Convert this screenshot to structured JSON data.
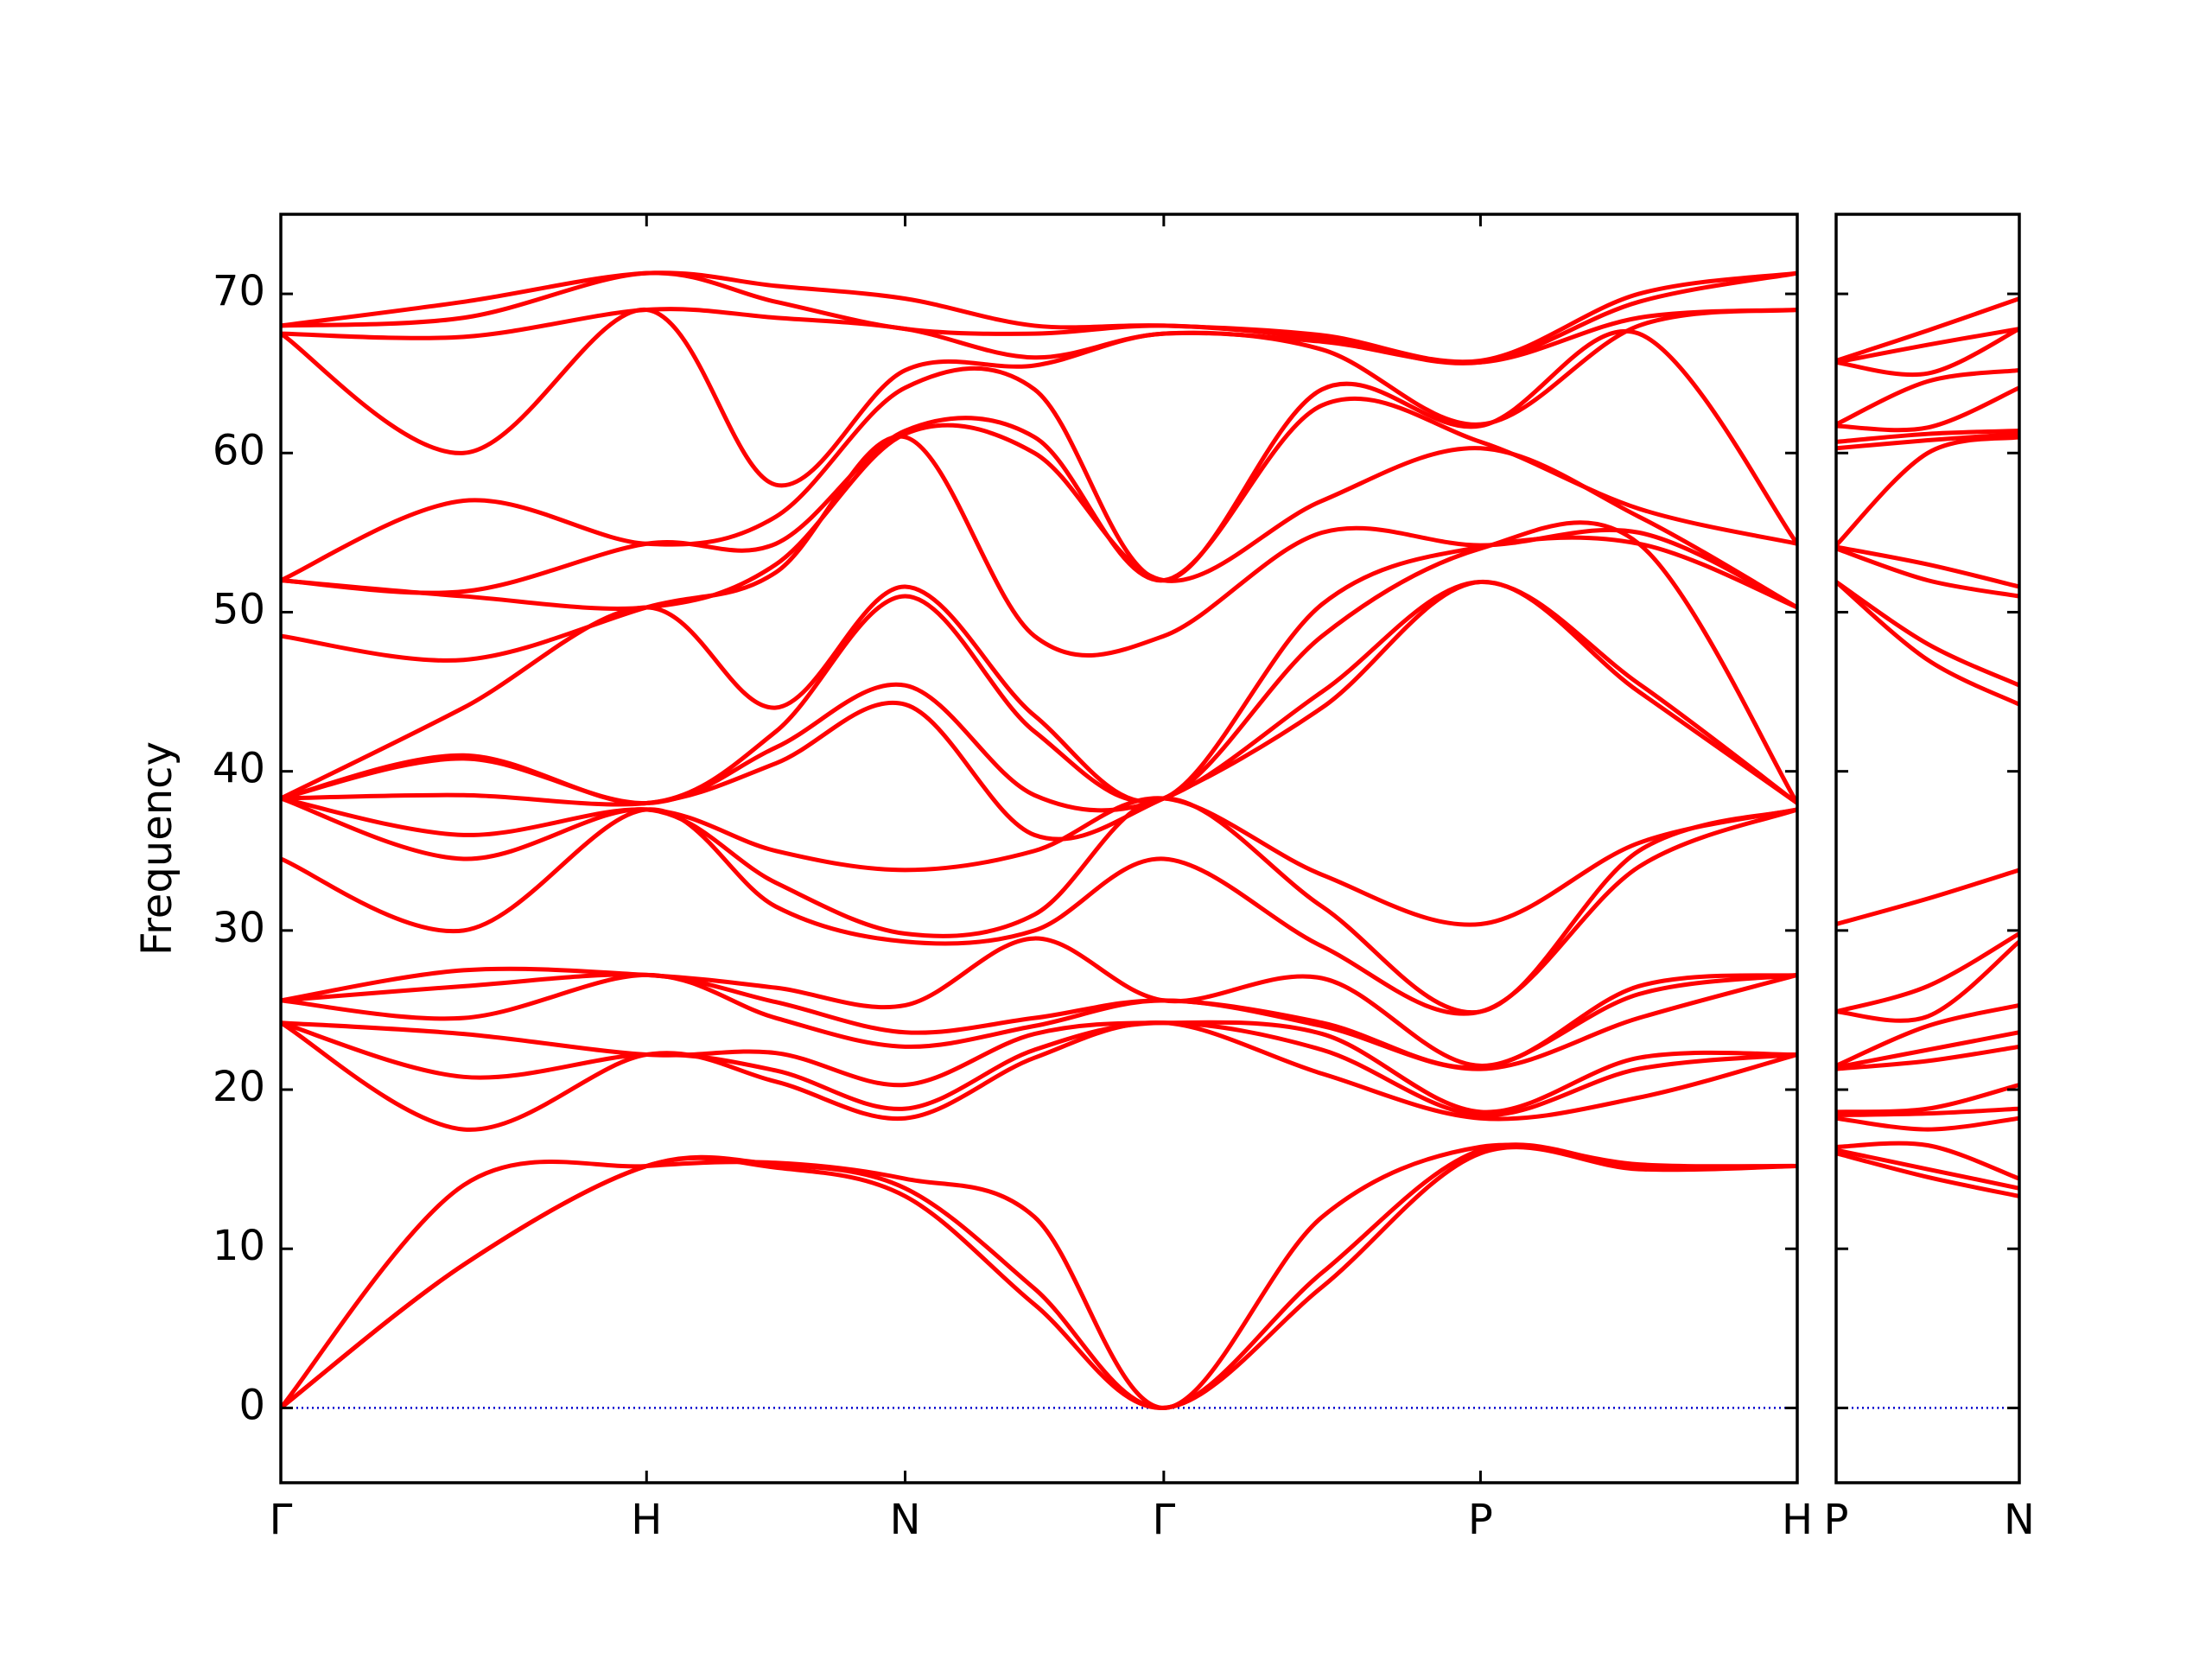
{
  "chart_data": [
    {
      "type": "line",
      "ylabel": "Frequency",
      "x": [
        0,
        0.5,
        1,
        1.3536,
        1.7071,
        2.0607,
        2.4142,
        2.8472,
        3.2802,
        3.7133,
        4.1463
      ],
      "xlim": [
        0,
        4.1463
      ],
      "xticks": [
        {
          "value": 0,
          "label": "Γ"
        },
        {
          "value": 1,
          "label": "H"
        },
        {
          "value": 1.7071,
          "label": "N"
        },
        {
          "value": 2.4142,
          "label": "Γ"
        },
        {
          "value": 3.2802,
          "label": "P"
        },
        {
          "value": 4.1463,
          "label": "H"
        }
      ],
      "ylim": [
        -4.7,
        75
      ],
      "yticks": [
        0,
        10,
        20,
        30,
        40,
        50,
        60,
        70
      ],
      "hline": 0,
      "hline_color": "#0000cc",
      "series": [
        {
          "color": "#ff0000",
          "values": [
            0,
            9,
            15.2,
            15.1,
            13.3,
            6.5,
            0,
            7.6,
            16.0,
            15,
            15.2
          ]
        },
        {
          "color": "#ff0000",
          "values": [
            0,
            9,
            15.2,
            15.3,
            13.8,
            7.5,
            0,
            8.5,
            16.2,
            15.2,
            15.2
          ]
        },
        {
          "color": "#ff0000",
          "values": [
            0,
            14,
            15.2,
            15.4,
            14.4,
            12,
            0,
            12,
            16.4,
            15.3,
            15.2
          ]
        },
        {
          "color": "#ff0000",
          "values": [
            24.2,
            17.5,
            22.2,
            20.5,
            18.2,
            22,
            24.2,
            21,
            18.2,
            19.5,
            22.2
          ]
        },
        {
          "color": "#ff0000",
          "values": [
            24.2,
            20.8,
            22.2,
            21.2,
            18.8,
            22.5,
            24.2,
            22.5,
            18.4,
            21.3,
            22.2
          ]
        },
        {
          "color": "#ff0000",
          "values": [
            24.2,
            23.5,
            22.2,
            22.3,
            20.3,
            23.5,
            24.2,
            23.5,
            18.6,
            22,
            22.2
          ]
        },
        {
          "color": "#ff0000",
          "values": [
            25.6,
            24.5,
            27.2,
            24.5,
            22.7,
            24,
            25.6,
            24,
            21.3,
            24.5,
            27.2
          ]
        },
        {
          "color": "#ff0000",
          "values": [
            25.6,
            26.5,
            27.2,
            25.5,
            23.6,
            24.5,
            25.6,
            24.2,
            21.4,
            26,
            27.2
          ]
        },
        {
          "color": "#ff0000",
          "values": [
            25.6,
            27.5,
            27.2,
            26.4,
            25.3,
            29.5,
            25.6,
            27,
            21.5,
            26.5,
            27.2
          ]
        },
        {
          "color": "#ff0000",
          "values": [
            34.5,
            30,
            37.6,
            31.5,
            29.3,
            30,
            34.5,
            29,
            24.9,
            34,
            37.6
          ]
        },
        {
          "color": "#ff0000",
          "values": [
            38.3,
            34.5,
            37.6,
            33,
            29.8,
            31,
            38.3,
            31.5,
            24.9,
            35,
            37.6
          ]
        },
        {
          "color": "#ff0000",
          "values": [
            38.3,
            36,
            37.6,
            35,
            33.8,
            35,
            38.3,
            33.5,
            30.4,
            35.5,
            37.6
          ]
        },
        {
          "color": "#ff0000",
          "values": [
            38.3,
            38.5,
            38,
            40.5,
            44.2,
            36,
            38.3,
            44,
            51.9,
            45,
            38
          ]
        },
        {
          "color": "#ff0000",
          "values": [
            38.3,
            40.8,
            38,
            41.5,
            45.4,
            38.5,
            38.3,
            45,
            51.9,
            45.5,
            38
          ]
        },
        {
          "color": "#ff0000",
          "values": [
            38.3,
            41,
            38,
            42.5,
            51,
            42.5,
            38.3,
            48.5,
            54.0,
            54.3,
            38
          ]
        },
        {
          "color": "#ff0000",
          "values": [
            38.3,
            44,
            50.3,
            44,
            51.6,
            43.5,
            38.3,
            50.5,
            54.1,
            54.3,
            50.3
          ]
        },
        {
          "color": "#ff0000",
          "values": [
            48.5,
            47,
            50.3,
            52.5,
            61,
            48.5,
            48.5,
            55,
            54.2,
            55,
            50.3
          ]
        },
        {
          "color": "#ff0000",
          "values": [
            52,
            51,
            50.3,
            53,
            61.2,
            60,
            52,
            57,
            60.3,
            56,
            50.3
          ]
        },
        {
          "color": "#ff0000",
          "values": [
            52,
            51.3,
            54.3,
            54.3,
            61.4,
            61,
            52,
            63,
            60.7,
            56.5,
            54.3
          ]
        },
        {
          "color": "#ff0000",
          "values": [
            52,
            57,
            54.3,
            56,
            64.1,
            64,
            52,
            64,
            61.7,
            67.5,
            54.3
          ]
        },
        {
          "color": "#ff0000",
          "values": [
            67.5,
            60,
            69,
            58,
            65.2,
            65.5,
            67.5,
            66.5,
            61.8,
            68,
            69
          ]
        },
        {
          "color": "#ff0000",
          "values": [
            67.5,
            67.3,
            69,
            68.5,
            67.8,
            66,
            67.5,
            67,
            65.7,
            68.5,
            69
          ]
        },
        {
          "color": "#ff0000",
          "values": [
            68,
            68.5,
            71.3,
            69.5,
            67.8,
            67.5,
            68,
            67.2,
            65.7,
            69.5,
            71.3
          ]
        },
        {
          "color": "#ff0000",
          "values": [
            68,
            69.5,
            71.3,
            70.5,
            69.7,
            68,
            68,
            67.4,
            65.8,
            70,
            71.3
          ]
        }
      ]
    },
    {
      "type": "line",
      "x": [
        0,
        0.25,
        0.5
      ],
      "xlim": [
        0,
        0.5
      ],
      "xticks": [
        {
          "value": 0,
          "label": "P"
        },
        {
          "value": 0.5,
          "label": "N"
        }
      ],
      "ylim": [
        -4.7,
        75
      ],
      "yticks": [
        0,
        10,
        20,
        30,
        40,
        50,
        60,
        70
      ],
      "hline": 0,
      "hline_color": "#0000cc",
      "series": [
        {
          "color": "#ff0000",
          "values": [
            16.0,
            14.5,
            13.3
          ]
        },
        {
          "color": "#ff0000",
          "values": [
            16.2,
            15,
            13.8
          ]
        },
        {
          "color": "#ff0000",
          "values": [
            16.4,
            16.5,
            14.4
          ]
        },
        {
          "color": "#ff0000",
          "values": [
            18.2,
            17.5,
            18.2
          ]
        },
        {
          "color": "#ff0000",
          "values": [
            18.4,
            18.5,
            18.8
          ]
        },
        {
          "color": "#ff0000",
          "values": [
            18.6,
            18.8,
            20.3
          ]
        },
        {
          "color": "#ff0000",
          "values": [
            21.3,
            21.8,
            22.7
          ]
        },
        {
          "color": "#ff0000",
          "values": [
            21.4,
            22.5,
            23.6
          ]
        },
        {
          "color": "#ff0000",
          "values": [
            21.5,
            24,
            25.3
          ]
        },
        {
          "color": "#ff0000",
          "values": [
            24.9,
            24.6,
            29.3
          ]
        },
        {
          "color": "#ff0000",
          "values": [
            24.9,
            26.5,
            29.8
          ]
        },
        {
          "color": "#ff0000",
          "values": [
            30.4,
            32,
            33.8
          ]
        },
        {
          "color": "#ff0000",
          "values": [
            51.9,
            47,
            44.2
          ]
        },
        {
          "color": "#ff0000",
          "values": [
            51.9,
            48,
            45.4
          ]
        },
        {
          "color": "#ff0000",
          "values": [
            54.0,
            52,
            51
          ]
        },
        {
          "color": "#ff0000",
          "values": [
            54.1,
            53,
            51.6
          ]
        },
        {
          "color": "#ff0000",
          "values": [
            54.2,
            60,
            61
          ]
        },
        {
          "color": "#ff0000",
          "values": [
            60.3,
            60.8,
            61.2
          ]
        },
        {
          "color": "#ff0000",
          "values": [
            60.7,
            61.2,
            61.4
          ]
        },
        {
          "color": "#ff0000",
          "values": [
            61.7,
            61.6,
            64.1
          ]
        },
        {
          "color": "#ff0000",
          "values": [
            61.8,
            64.5,
            65.2
          ]
        },
        {
          "color": "#ff0000",
          "values": [
            65.7,
            65,
            67.8
          ]
        },
        {
          "color": "#ff0000",
          "values": [
            65.7,
            66.8,
            67.8
          ]
        },
        {
          "color": "#ff0000",
          "values": [
            65.8,
            67.7,
            69.7
          ]
        }
      ]
    }
  ]
}
